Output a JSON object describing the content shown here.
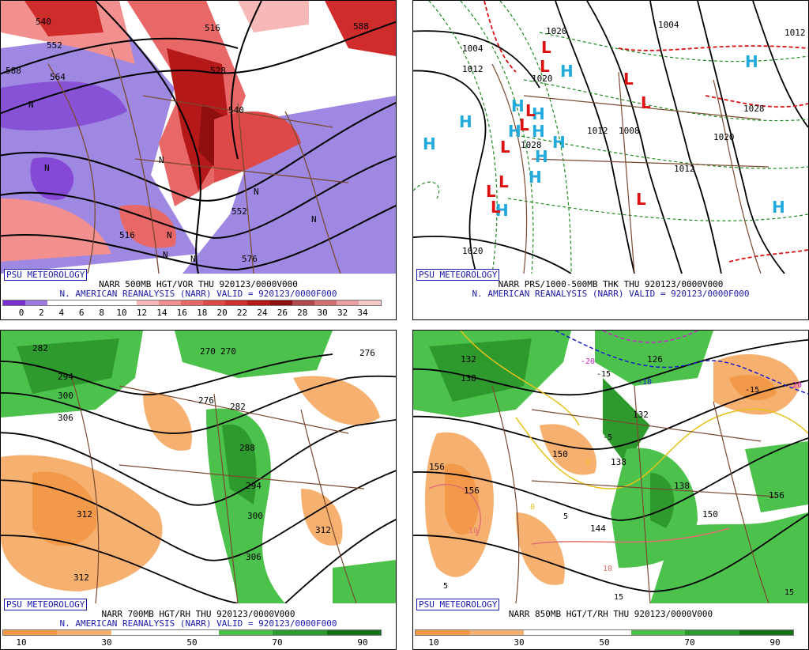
{
  "panels": [
    {
      "brand": "PSU METEOROLOGY",
      "caption_top": "NARR 500MB HGT/VOR THU 920123/0000V000",
      "caption_bottom": "N. AMERICAN REANALYSIS (NARR) VALID = 920123/0000F000",
      "colorbar": [
        "#7a2fd0",
        "#9c78e0",
        "#ffffff",
        "#ffffff",
        "#ffffff",
        "#ffffff",
        "#f7b8b8",
        "#f29090",
        "#e86868",
        "#de4848",
        "#cf2c2c",
        "#b51818",
        "#8f0e0e",
        "#b04a4a",
        "#d07070",
        "#e8a0a0",
        "#f5c8c8"
      ],
      "ticks": [
        "0",
        "2",
        "4",
        "6",
        "8",
        "10",
        "12",
        "14",
        "16",
        "18",
        "20",
        "22",
        "24",
        "26",
        "28",
        "30",
        "32",
        "34"
      ],
      "contour_labels": [
        "540",
        "552",
        "564",
        "516",
        "528",
        "540",
        "552",
        "576",
        "588",
        "588",
        "516"
      ],
      "centers": [
        "N",
        "N",
        "N",
        "N",
        "N",
        "N",
        "N",
        "N"
      ]
    },
    {
      "brand": "PSU METEOROLOGY",
      "caption_top": "NARR PRS/1000-500MB THK THU 920123/0000V000",
      "caption_bottom": "N. AMERICAN REANALYSIS (NARR) VALID = 920123/0000F000",
      "contour_labels": [
        "1020",
        "1004",
        "1012",
        "1020",
        "1008",
        "1012",
        "1028",
        "1004",
        "1012",
        "1028",
        "1020",
        "1012",
        "1020"
      ],
      "highs": [
        "H",
        "H",
        "H",
        "H",
        "H",
        "H",
        "H",
        "H",
        "H",
        "H",
        "H",
        "H",
        "H"
      ],
      "lows": [
        "L",
        "L",
        "L",
        "L",
        "L",
        "L",
        "L",
        "L",
        "L",
        "L",
        "L"
      ]
    },
    {
      "brand": "PSU METEOROLOGY",
      "caption_top": "NARR 700MB HGT/RH THU 920123/0000V000",
      "caption_bottom": "N. AMERICAN REANALYSIS (NARR) VALID = 920123/0000F000",
      "colorbar": [
        "#f29a4a",
        "#f6b070",
        "#ffffff",
        "#ffffff",
        "#4cc24c",
        "#2e9a2e",
        "#197219"
      ],
      "ticks": [
        "10",
        "30",
        "50",
        "70",
        "90"
      ],
      "contour_labels": [
        "282",
        "294",
        "300",
        "306",
        "312",
        "312",
        "276",
        "270",
        "282",
        "288",
        "294",
        "300",
        "306",
        "312",
        "270",
        "276"
      ]
    },
    {
      "brand": "PSU METEOROLOGY",
      "caption_top": "NARR 850MB HGT/T/RH THU 920123/0000V000",
      "caption_bottom": "",
      "colorbar": [
        "#f29a4a",
        "#f6b070",
        "#ffffff",
        "#ffffff",
        "#4cc24c",
        "#2e9a2e",
        "#197219"
      ],
      "ticks": [
        "10",
        "30",
        "50",
        "70",
        "90"
      ],
      "contour_labels": [
        "132",
        "138",
        "156",
        "156",
        "150",
        "144",
        "138",
        "132",
        "126",
        "150",
        "156",
        "138"
      ],
      "temp_labels": [
        "-20",
        "-15",
        "-10",
        "-5",
        "0",
        "5",
        "10",
        "10",
        "15",
        "15",
        "-15",
        "-20",
        "0",
        "5",
        "15"
      ]
    }
  ]
}
